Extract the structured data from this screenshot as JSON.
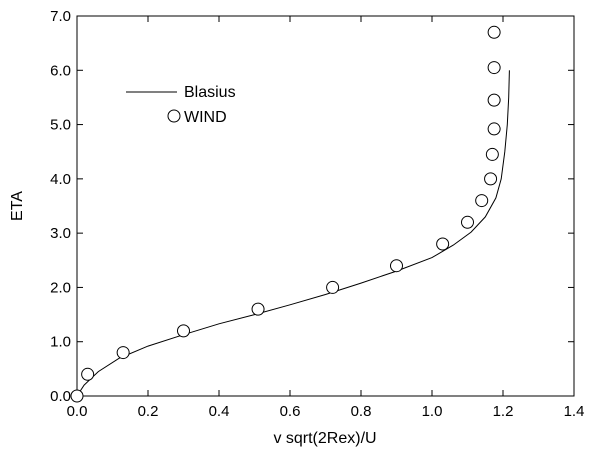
{
  "chart_data": {
    "type": "line",
    "xlabel": "v sqrt(2Rex)/U",
    "ylabel": "ETA",
    "xlim": [
      0.0,
      1.4
    ],
    "ylim": [
      0.0,
      7.0
    ],
    "x_ticks": [
      "0.0",
      "0.2",
      "0.4",
      "0.6",
      "0.8",
      "1.0",
      "1.2",
      "1.4"
    ],
    "y_ticks": [
      "0.0",
      "1.0",
      "2.0",
      "3.0",
      "4.0",
      "5.0",
      "6.0",
      "7.0"
    ],
    "grid": false,
    "legend_position": "upper-left",
    "series": [
      {
        "name": "Blasius",
        "style": "line",
        "color": "#000000",
        "points": [
          [
            0.0,
            0.0
          ],
          [
            0.02,
            0.2
          ],
          [
            0.06,
            0.45
          ],
          [
            0.12,
            0.7
          ],
          [
            0.2,
            0.92
          ],
          [
            0.3,
            1.13
          ],
          [
            0.4,
            1.33
          ],
          [
            0.5,
            1.5
          ],
          [
            0.6,
            1.68
          ],
          [
            0.7,
            1.87
          ],
          [
            0.8,
            2.08
          ],
          [
            0.9,
            2.3
          ],
          [
            1.0,
            2.55
          ],
          [
            1.06,
            2.78
          ],
          [
            1.11,
            3.02
          ],
          [
            1.15,
            3.3
          ],
          [
            1.18,
            3.65
          ],
          [
            1.195,
            4.0
          ],
          [
            1.205,
            4.5
          ],
          [
            1.212,
            5.0
          ],
          [
            1.216,
            5.5
          ],
          [
            1.218,
            6.0
          ]
        ]
      },
      {
        "name": "WIND",
        "style": "circle",
        "color": "#000000",
        "points": [
          [
            0.0,
            0.0
          ],
          [
            0.03,
            0.4
          ],
          [
            0.13,
            0.8
          ],
          [
            0.3,
            1.2
          ],
          [
            0.51,
            1.6
          ],
          [
            0.72,
            2.0
          ],
          [
            0.9,
            2.4
          ],
          [
            1.03,
            2.8
          ],
          [
            1.1,
            3.2
          ],
          [
            1.14,
            3.6
          ],
          [
            1.165,
            4.0
          ],
          [
            1.17,
            4.45
          ],
          [
            1.175,
            4.92
          ],
          [
            1.175,
            5.45
          ],
          [
            1.175,
            6.05
          ],
          [
            1.175,
            6.7
          ]
        ]
      }
    ]
  }
}
